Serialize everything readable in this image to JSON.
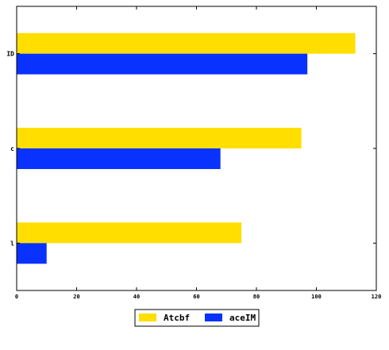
{
  "chart_data": {
    "type": "bar",
    "orientation": "horizontal",
    "categories": [
      "l",
      "c",
      "ID"
    ],
    "series": [
      {
        "name": "Atcbf",
        "values": [
          75,
          95,
          113
        ],
        "color": "#ffde00"
      },
      {
        "name": "aceIM",
        "values": [
          10,
          68,
          97
        ],
        "color": "#0a32ff"
      }
    ],
    "xlim": [
      0,
      120
    ],
    "xticks": [
      0,
      20,
      40,
      60,
      80,
      100,
      120
    ],
    "grid": false,
    "legend_position": "bottom-center"
  }
}
